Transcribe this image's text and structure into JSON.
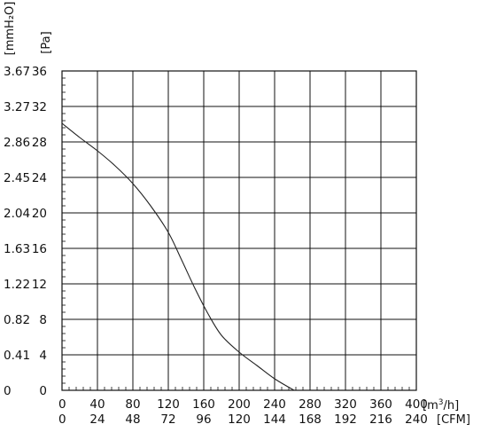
{
  "chart_data": {
    "type": "line",
    "y_units": {
      "primary": "[Pa]",
      "secondary": "[mmH₂O]"
    },
    "x_units": {
      "primary": "[m³/h]",
      "primary_parts": [
        "[m",
        "3",
        "/h]"
      ],
      "secondary": "[CFM]"
    },
    "y_ticks_pa": [
      "0",
      "4",
      "8",
      "12",
      "16",
      "20",
      "24",
      "28",
      "32",
      "36"
    ],
    "y_ticks_mmh2o": [
      "0",
      "0.41",
      "0.82",
      "1.22",
      "1.63",
      "2.04",
      "2.45",
      "2.86",
      "3.27",
      "3.67"
    ],
    "x_ticks_m3h": [
      "0",
      "40",
      "80",
      "120",
      "160",
      "200",
      "240",
      "280",
      "320",
      "360",
      "400"
    ],
    "x_ticks_cfm": [
      "0",
      "24",
      "48",
      "72",
      "96",
      "120",
      "144",
      "168",
      "192",
      "216",
      "240"
    ],
    "xlim": [
      0,
      400
    ],
    "ylim": [
      0,
      36
    ],
    "grid": true,
    "minor_ticks_per_major": 5,
    "series": [
      {
        "color": "#222222",
        "points": [
          {
            "x": 0,
            "y": 30.1
          },
          {
            "x": 20,
            "y": 28.5
          },
          {
            "x": 40,
            "y": 27.0
          },
          {
            "x": 60,
            "y": 25.3
          },
          {
            "x": 80,
            "y": 23.3
          },
          {
            "x": 100,
            "y": 20.8
          },
          {
            "x": 120,
            "y": 17.8
          },
          {
            "x": 135,
            "y": 14.7
          },
          {
            "x": 150,
            "y": 11.5
          },
          {
            "x": 165,
            "y": 8.6
          },
          {
            "x": 180,
            "y": 6.2
          },
          {
            "x": 200,
            "y": 4.3
          },
          {
            "x": 220,
            "y": 2.8
          },
          {
            "x": 240,
            "y": 1.3
          },
          {
            "x": 262,
            "y": 0
          }
        ]
      }
    ]
  }
}
